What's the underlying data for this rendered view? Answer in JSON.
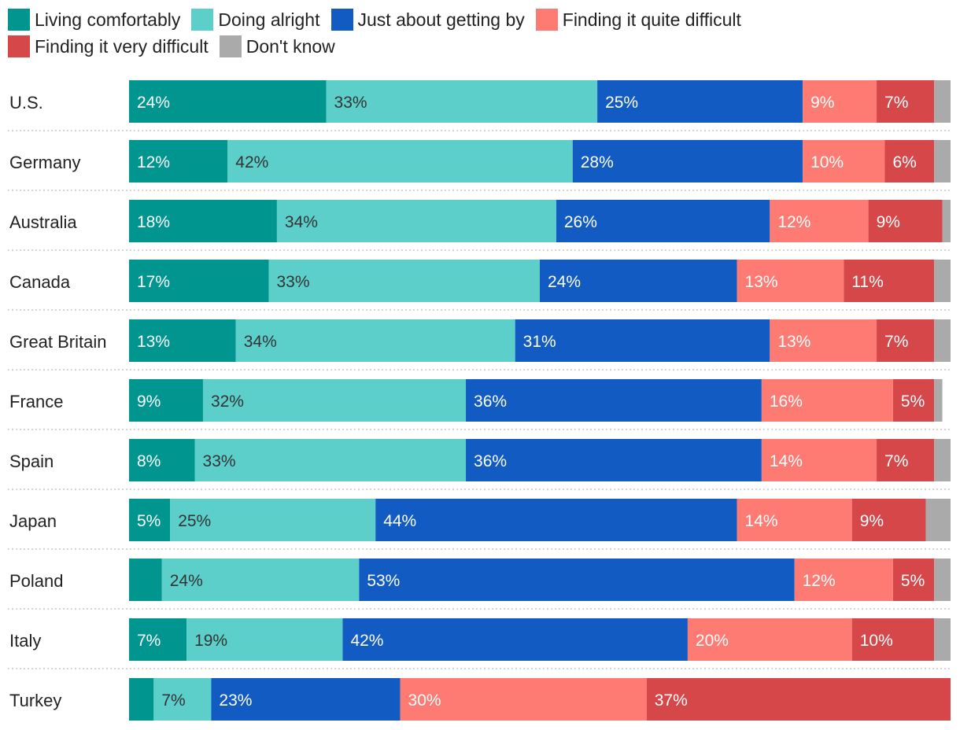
{
  "chart_data": {
    "type": "stacked-bar-horizontal",
    "title": "",
    "xlabel": "",
    "ylabel": "",
    "xlim": [
      0,
      100
    ],
    "legend_position": "top",
    "series": [
      {
        "name": "Living comfortably",
        "color": "#00968f",
        "label_color": "#ffffff",
        "values": [
          24,
          12,
          18,
          17,
          13,
          9,
          8,
          5,
          4,
          7,
          3
        ],
        "labels": [
          "24%",
          "12%",
          "18%",
          "17%",
          "13%",
          "9%",
          "8%",
          "5%",
          "",
          "7%",
          ""
        ]
      },
      {
        "name": "Doing alright",
        "color": "#5ccfcb",
        "label_color": "#333333",
        "values": [
          33,
          42,
          34,
          33,
          34,
          32,
          33,
          25,
          24,
          19,
          7
        ],
        "labels": [
          "33%",
          "42%",
          "34%",
          "33%",
          "34%",
          "32%",
          "33%",
          "25%",
          "24%",
          "19%",
          "7%"
        ]
      },
      {
        "name": "Just about getting by",
        "color": "#115bc2",
        "label_color": "#ffffff",
        "values": [
          25,
          28,
          26,
          24,
          31,
          36,
          36,
          44,
          53,
          42,
          23
        ],
        "labels": [
          "25%",
          "28%",
          "26%",
          "24%",
          "31%",
          "36%",
          "36%",
          "44%",
          "53%",
          "42%",
          "23%"
        ]
      },
      {
        "name": "Finding it quite difficult",
        "color": "#fe7b74",
        "label_color": "#ffffff",
        "values": [
          9,
          10,
          12,
          13,
          13,
          16,
          14,
          14,
          12,
          20,
          30
        ],
        "labels": [
          "9%",
          "10%",
          "12%",
          "13%",
          "13%",
          "16%",
          "14%",
          "14%",
          "12%",
          "20%",
          "30%"
        ]
      },
      {
        "name": "Finding it very difficult",
        "color": "#d6474a",
        "label_color": "#ffffff",
        "values": [
          7,
          6,
          9,
          11,
          7,
          5,
          7,
          9,
          5,
          10,
          37
        ],
        "labels": [
          "7%",
          "6%",
          "9%",
          "11%",
          "7%",
          "5%",
          "7%",
          "9%",
          "5%",
          "10%",
          "37%"
        ]
      },
      {
        "name": "Don't know",
        "color": "#aaaaaa",
        "label_color": "#ffffff",
        "values": [
          2,
          2,
          1,
          2,
          2,
          1,
          2,
          3,
          2,
          3,
          1
        ],
        "labels": [
          "",
          "",
          "",
          "",
          "",
          "",
          "",
          "",
          "",
          "",
          ""
        ]
      }
    ],
    "categories": [
      "U.S.",
      "Germany",
      "Australia",
      "Canada",
      "Great Britain",
      "France",
      "Spain",
      "Japan",
      "Poland",
      "Italy",
      "Turkey"
    ]
  }
}
